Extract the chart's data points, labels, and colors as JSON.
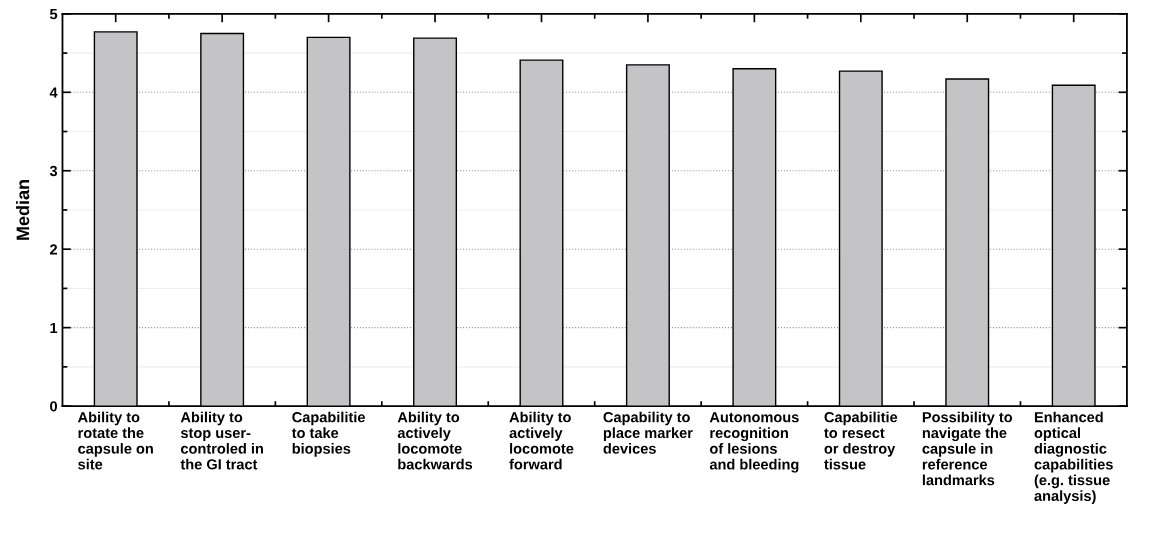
{
  "chart_data": {
    "type": "bar",
    "ylabel": "Median",
    "categories": [
      "Ability to\nrotate the\ncapsule on\nsite",
      "Ability to\nstop user-\ncontroled in\nthe GI tract",
      "Capabilitie\nto take\nbiopsies",
      "Ability to\nactively\nlocomote\nbackwards",
      "Ability to\nactively\nlocomote\nforward",
      "Capability to\nplace marker\ndevices",
      "Autonomous\nrecognition\nof lesions\nand bleeding",
      "Capabilitie\nto resect\nor destroy\ntissue",
      "Possibility to\nnavigate the\ncapsule in\nreference\nlandmarks",
      "Enhanced\noptical\ndiagnostic\ncapabilities\n(e.g. tissue\nanalysis)"
    ],
    "values": [
      4.77,
      4.75,
      4.7,
      4.69,
      4.41,
      4.35,
      4.3,
      4.27,
      4.17,
      4.09
    ],
    "color": "#c4c3c6",
    "ylim": [
      0,
      5
    ],
    "yticks": [
      0,
      1,
      2,
      3,
      4,
      5
    ],
    "grid": "y"
  }
}
